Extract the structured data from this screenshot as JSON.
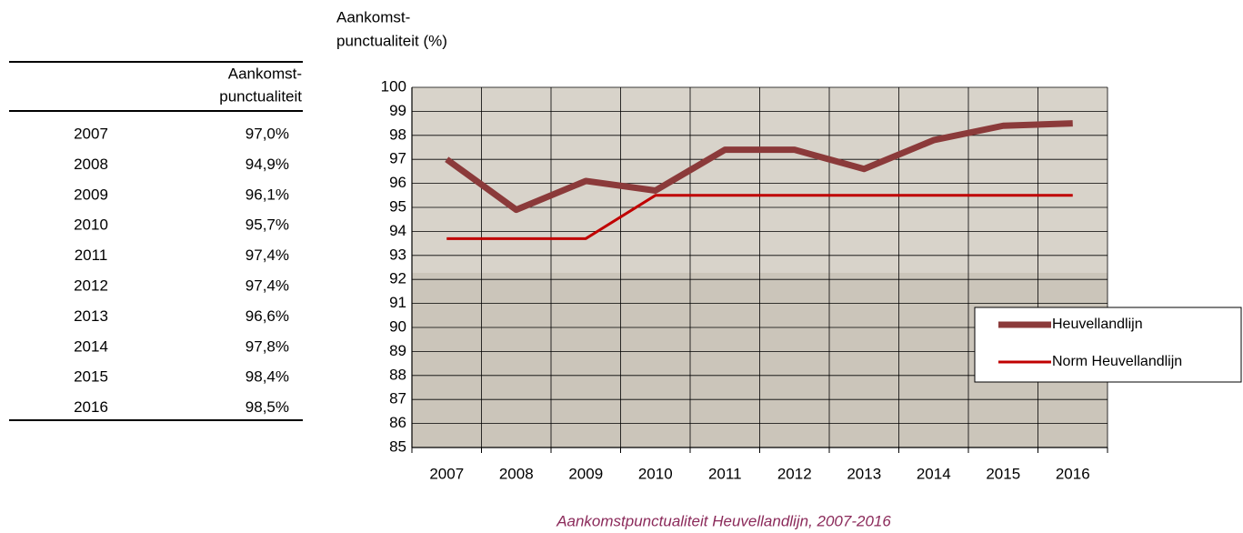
{
  "table": {
    "header": [
      "Aankomst-",
      "punctualiteit"
    ],
    "rows": [
      [
        "2007",
        "97,0%"
      ],
      [
        "2008",
        "94,9%"
      ],
      [
        "2009",
        "96,1%"
      ],
      [
        "2010",
        "95,7%"
      ],
      [
        "2011",
        "97,4%"
      ],
      [
        "2012",
        "97,4%"
      ],
      [
        "2013",
        "96,6%"
      ],
      [
        "2014",
        "97,8%"
      ],
      [
        "2015",
        "98,4%"
      ],
      [
        "2016",
        "98,5%"
      ]
    ]
  },
  "chart_data": {
    "type": "line",
    "ylabel": [
      "Aankomst-",
      "punctualiteit (%)"
    ],
    "caption": "Aankomstpunctualiteit Heuvellandlijn, 2007-2016",
    "categories": [
      "2007",
      "2008",
      "2009",
      "2010",
      "2011",
      "2012",
      "2013",
      "2014",
      "2015",
      "2016"
    ],
    "series": [
      {
        "name": "Heuvellandlijn",
        "color": "#8b3a3a",
        "values": [
          97.0,
          94.9,
          96.1,
          95.7,
          97.4,
          97.4,
          96.6,
          97.8,
          98.4,
          98.5
        ]
      },
      {
        "name": "Norm Heuvellandlijn",
        "color": "#c00000",
        "values": [
          93.7,
          93.7,
          93.7,
          95.5,
          95.5,
          95.5,
          95.5,
          95.5,
          95.5,
          95.5
        ]
      }
    ],
    "ylim": [
      85,
      100
    ],
    "yticks": [
      85,
      86,
      87,
      88,
      89,
      90,
      91,
      92,
      93,
      94,
      95,
      96,
      97,
      98,
      99,
      100
    ],
    "grid": true,
    "legend": "right"
  }
}
